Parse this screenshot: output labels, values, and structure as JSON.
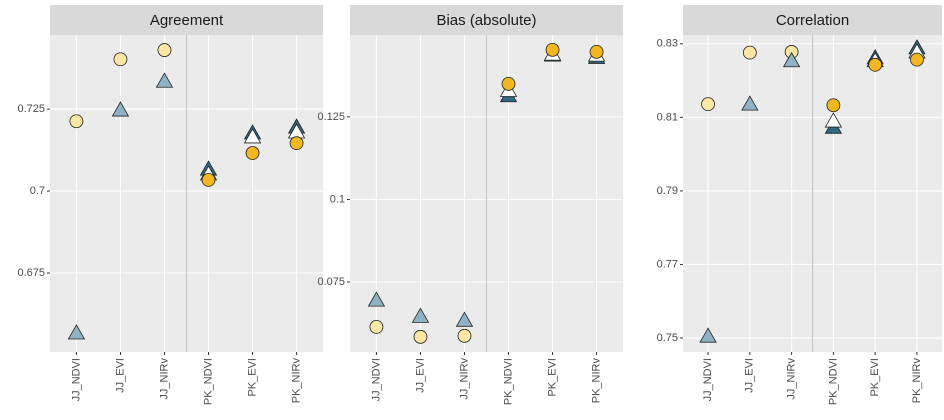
{
  "chart_data": [
    {
      "type": "scatter",
      "title": "Agreement",
      "categories": [
        "JJ_NDVI",
        "JJ_EVI",
        "JJ_NIRv",
        "PK_NDVI",
        "PK_EVI",
        "PK_NIRv"
      ],
      "ylim": [
        0.6509,
        0.7476
      ],
      "yticks": [
        0.675,
        0.7,
        0.725
      ],
      "grid": true,
      "series": [
        {
          "color": "#fbe7a3",
          "marker": "circle",
          "values": [
            0.7213,
            0.7402,
            0.743,
            null,
            null,
            null
          ]
        },
        {
          "color": "#8fb3c4",
          "marker": "triangle",
          "values": [
            0.6567,
            0.7247,
            0.7335,
            null,
            null,
            null
          ]
        },
        {
          "color": "#2f6a85",
          "marker": "triangle",
          "values": [
            null,
            null,
            null,
            0.7067,
            0.7177,
            0.7195
          ]
        },
        {
          "color": "#ffffff",
          "marker": "triangle",
          "values": [
            null,
            null,
            null,
            0.7052,
            0.7165,
            0.718
          ]
        },
        {
          "color": "#f3b71f",
          "marker": "circle",
          "values": [
            null,
            null,
            null,
            0.7034,
            0.7116,
            0.7146
          ]
        }
      ]
    },
    {
      "type": "scatter",
      "title": "Bias (absolute)",
      "categories": [
        "JJ_NDVI",
        "JJ_EVI",
        "JJ_NIRv",
        "PK_NDVI",
        "PK_EVI",
        "PK_NIRv"
      ],
      "ylim": [
        0.0538,
        0.1498
      ],
      "yticks": [
        0.075,
        0.1,
        0.125
      ],
      "grid": true,
      "series": [
        {
          "color": "#fbe7a3",
          "marker": "circle",
          "values": [
            0.0614,
            0.0584,
            0.0587,
            null,
            null,
            null
          ]
        },
        {
          "color": "#8fb3c4",
          "marker": "triangle",
          "values": [
            0.0695,
            0.0646,
            0.0634,
            null,
            null,
            null
          ]
        },
        {
          "color": "#2f6a85",
          "marker": "triangle",
          "values": [
            null,
            null,
            null,
            0.1314,
            0.1437,
            0.143
          ]
        },
        {
          "color": "#ffffff",
          "marker": "triangle",
          "values": [
            null,
            null,
            null,
            0.133,
            0.144,
            0.1437
          ]
        },
        {
          "color": "#f3b71f",
          "marker": "circle",
          "values": [
            null,
            null,
            null,
            0.135,
            0.1453,
            0.1447
          ]
        }
      ]
    },
    {
      "type": "scatter",
      "title": "Correlation",
      "categories": [
        "JJ_NDVI",
        "JJ_EVI",
        "JJ_NIRv",
        "PK_NDVI",
        "PK_EVI",
        "PK_NIRv"
      ],
      "ylim": [
        0.7462,
        0.8324
      ],
      "yticks": [
        0.75,
        0.77,
        0.79,
        0.81,
        0.83
      ],
      "grid": true,
      "series": [
        {
          "color": "#fbe7a3",
          "marker": "circle",
          "values": [
            0.8136,
            0.8276,
            0.8278,
            null,
            null,
            null
          ]
        },
        {
          "color": "#8fb3c4",
          "marker": "triangle",
          "values": [
            0.7505,
            0.8136,
            0.8254,
            null,
            null,
            null
          ]
        },
        {
          "color": "#2f6a85",
          "marker": "triangle",
          "values": [
            null,
            null,
            null,
            0.8073,
            0.8262,
            0.8289
          ]
        },
        {
          "color": "#ffffff",
          "marker": "triangle",
          "values": [
            null,
            null,
            null,
            0.809,
            0.8254,
            0.8278
          ]
        },
        {
          "color": "#f3b71f",
          "marker": "circle",
          "values": [
            null,
            null,
            null,
            0.8133,
            0.8243,
            0.8257
          ]
        }
      ]
    }
  ]
}
